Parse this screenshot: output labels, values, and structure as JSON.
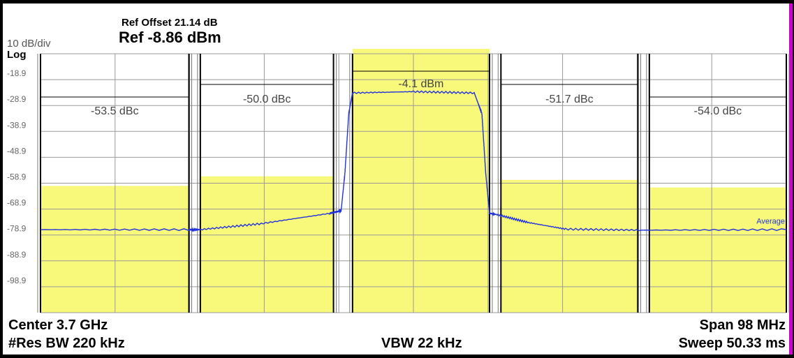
{
  "header": {
    "ref_offset": "Ref Offset 21.14 dB",
    "ref_level": "Ref -8.86 dBm",
    "scale": "10 dB/div",
    "scale_type": "Log"
  },
  "footer": {
    "center": "Center 3.7 GHz",
    "res_bw": "#Res BW 220 kHz",
    "vbw": "VBW 22 kHz",
    "span": "Span 98 MHz",
    "sweep": "Sweep 50.33 ms"
  },
  "colors": {
    "limit_fill": "#f8f87a",
    "trace": "#2233dd",
    "grid": "#9a9a9a",
    "marker_text": "#444444"
  },
  "chart_data": {
    "type": "line",
    "ylim": [
      -108.86,
      -8.86
    ],
    "y_ticks": [
      "-18.9",
      "-28.9",
      "-38.9",
      "-48.9",
      "-58.9",
      "-68.9",
      "-78.9",
      "-88.9",
      "-98.9"
    ],
    "xlim": [
      3651,
      3749
    ],
    "x_unit": "MHz",
    "trace_label": "Average",
    "trace": {
      "x": [
        3651,
        3670.5,
        3672,
        3680,
        3689,
        3690.5,
        3691,
        3691.5,
        3692,
        3700,
        3708,
        3709,
        3709.5,
        3710,
        3711,
        3715,
        3720,
        3730,
        3749
      ],
      "y": [
        -76.8,
        -76.8,
        -76.8,
        -74.5,
        -70.5,
        -69.5,
        -55,
        -32,
        -24.0,
        -23.5,
        -24.0,
        -32,
        -55,
        -70.5,
        -71.0,
        -74,
        -76.6,
        -77.0,
        -76.8
      ]
    },
    "channels": [
      {
        "label": "-53.5 dBc",
        "x_start": 3651,
        "x_end": 3670.5,
        "limit": -59.9
      },
      {
        "label": "-50.0 dBc",
        "x_start": 3672,
        "x_end": 3689.5,
        "limit": -56.2
      },
      {
        "label": "-4.1 dBm",
        "x_start": 3692,
        "x_end": 3710,
        "limit": 8
      },
      {
        "label": "-51.7 dBc",
        "x_start": 3711.5,
        "x_end": 3729.5,
        "limit": -57.6
      },
      {
        "label": "-54.0 dBc",
        "x_start": 3731,
        "x_end": 3749,
        "limit": -60.5
      }
    ]
  }
}
